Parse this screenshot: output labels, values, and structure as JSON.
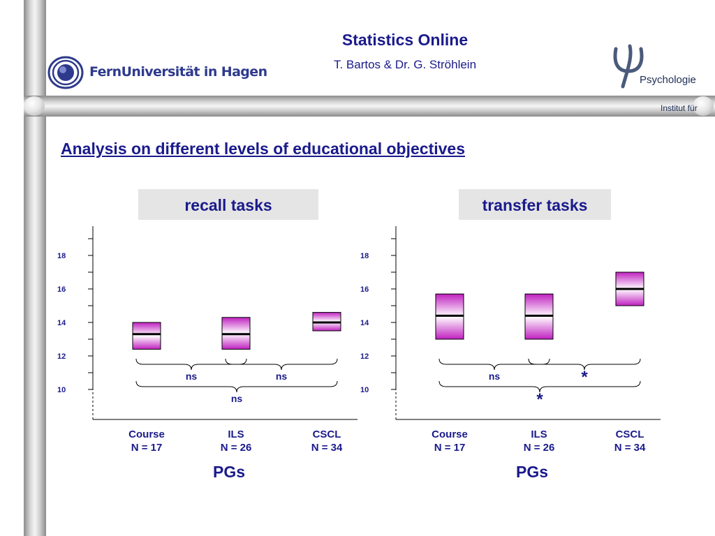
{
  "header": {
    "title": "Statistics Online",
    "authors": "T. Bartos & Dr. G. Ströhlein",
    "logo_left_text": "FernUniversität in Hagen",
    "logo_right_line1": "Institut für",
    "logo_right_line2": "Psychologie"
  },
  "slide": {
    "heading": "Analysis on different levels of educational objectives"
  },
  "chart_data": [
    {
      "type": "box",
      "title": "recall tasks",
      "xlabel": "PGs",
      "ylabel": "",
      "ylim": [
        10,
        19
      ],
      "yticks": [
        10,
        12,
        14,
        16,
        18
      ],
      "categories": [
        {
          "name": "Course",
          "n_label": "N = 17"
        },
        {
          "name": "ILS",
          "n_label": "N = 26"
        },
        {
          "name": "CSCL",
          "n_label": "N = 34"
        }
      ],
      "boxes": [
        {
          "low": 12.4,
          "mid": 13.3,
          "high": 14.0
        },
        {
          "low": 12.4,
          "mid": 13.3,
          "high": 14.3
        },
        {
          "low": 13.5,
          "mid": 14.0,
          "high": 14.6
        }
      ],
      "comparisons": [
        {
          "from": 0,
          "to": 1,
          "label": "ns"
        },
        {
          "from": 1,
          "to": 2,
          "label": "ns"
        },
        {
          "from": 0,
          "to": 2,
          "label": "ns"
        }
      ],
      "colors": {
        "box_dark": "#c020c0",
        "box_light": "#ffffff",
        "median": "#000000",
        "text": "#1a1a8c"
      }
    },
    {
      "type": "box",
      "title": "transfer tasks",
      "xlabel": "PGs",
      "ylabel": "",
      "ylim": [
        10,
        19
      ],
      "yticks": [
        10,
        12,
        14,
        16,
        18
      ],
      "categories": [
        {
          "name": "Course",
          "n_label": "N = 17"
        },
        {
          "name": "ILS",
          "n_label": "N = 26"
        },
        {
          "name": "CSCL",
          "n_label": "N = 34"
        }
      ],
      "boxes": [
        {
          "low": 13.0,
          "mid": 14.4,
          "high": 15.7
        },
        {
          "low": 13.0,
          "mid": 14.4,
          "high": 15.7
        },
        {
          "low": 15.0,
          "mid": 16.0,
          "high": 17.0
        }
      ],
      "comparisons": [
        {
          "from": 0,
          "to": 1,
          "label": "ns"
        },
        {
          "from": 1,
          "to": 2,
          "label": "*"
        },
        {
          "from": 0,
          "to": 2,
          "label": "*"
        }
      ],
      "colors": {
        "box_dark": "#c020c0",
        "box_light": "#ffffff",
        "median": "#000000",
        "text": "#1a1a8c"
      }
    }
  ]
}
